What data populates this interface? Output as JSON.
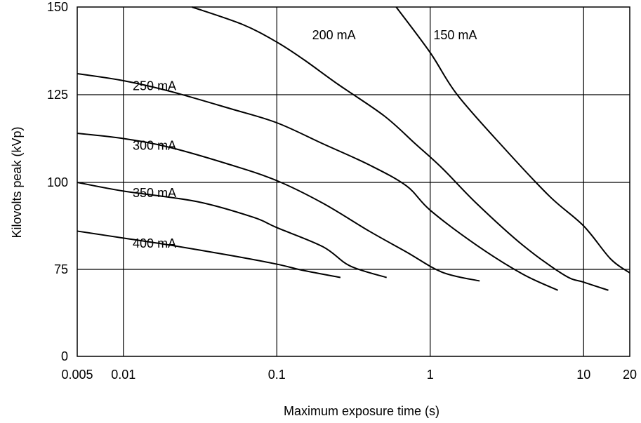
{
  "chart_data": {
    "type": "line",
    "xlabel": "Maximum exposure time (s)",
    "ylabel": "Kilovolts peak (kVp)",
    "x_scale": "log",
    "xlim": [
      0.005,
      20
    ],
    "ylim": [
      0,
      150
    ],
    "grid": true,
    "x_ticks": [
      {
        "value": 0.005,
        "label": "0.005"
      },
      {
        "value": 0.01,
        "label": "0.01"
      },
      {
        "value": 0.1,
        "label": "0.1"
      },
      {
        "value": 1,
        "label": "1"
      },
      {
        "value": 10,
        "label": "10"
      },
      {
        "value": 20,
        "label": "20"
      }
    ],
    "y_ticks": [
      {
        "value": 0,
        "label": "0"
      },
      {
        "value": 75,
        "label": "75"
      },
      {
        "value": 100,
        "label": "100"
      },
      {
        "value": 125,
        "label": "125"
      },
      {
        "value": 150,
        "label": "150"
      }
    ],
    "series": [
      {
        "name": "150 mA",
        "label_at": [
          1.05,
          142
        ],
        "points": [
          [
            0.6,
            150
          ],
          [
            1,
            137
          ],
          [
            1.5,
            125
          ],
          [
            3,
            110
          ],
          [
            6,
            96
          ],
          [
            10,
            87.5
          ],
          [
            15,
            78
          ],
          [
            20,
            72
          ]
        ]
      },
      {
        "name": "200 mA",
        "label_at": [
          0.17,
          142
        ],
        "points": [
          [
            0.028,
            150
          ],
          [
            0.06,
            145
          ],
          [
            0.1,
            140
          ],
          [
            0.15,
            135
          ],
          [
            0.25,
            128
          ],
          [
            0.5,
            119
          ],
          [
            0.8,
            111
          ],
          [
            1.2,
            104
          ],
          [
            2,
            94
          ],
          [
            4,
            82
          ],
          [
            7.5,
            70
          ],
          [
            10,
            64
          ],
          [
            14.5,
            57
          ]
        ]
      },
      {
        "name": "250 mA",
        "label_at": [
          0.0115,
          127.5
        ],
        "points": [
          [
            0.005,
            131
          ],
          [
            0.01,
            129
          ],
          [
            0.02,
            126
          ],
          [
            0.05,
            121
          ],
          [
            0.1,
            117
          ],
          [
            0.2,
            111
          ],
          [
            0.4,
            105
          ],
          [
            0.7,
            99
          ],
          [
            1,
            92
          ],
          [
            2,
            82
          ],
          [
            4,
            71
          ],
          [
            6.8,
            57
          ]
        ]
      },
      {
        "name": "300 mA",
        "label_at": [
          0.0115,
          110.5
        ],
        "points": [
          [
            0.005,
            114
          ],
          [
            0.01,
            112.5
          ],
          [
            0.02,
            110
          ],
          [
            0.05,
            105
          ],
          [
            0.1,
            100.5
          ],
          [
            0.2,
            94
          ],
          [
            0.4,
            86
          ],
          [
            0.7,
            80
          ],
          [
            1.2,
            72.5
          ],
          [
            2.1,
            65
          ]
        ]
      },
      {
        "name": "350 mA",
        "label_at": [
          0.0115,
          97
        ],
        "points": [
          [
            0.005,
            100
          ],
          [
            0.01,
            97.5
          ],
          [
            0.03,
            94.5
          ],
          [
            0.07,
            90
          ],
          [
            0.1,
            87
          ],
          [
            0.2,
            81.5
          ],
          [
            0.3,
            76
          ],
          [
            0.52,
            68
          ]
        ]
      },
      {
        "name": "400 mA",
        "label_at": [
          0.0115,
          82.5
        ],
        "points": [
          [
            0.005,
            86
          ],
          [
            0.01,
            84
          ],
          [
            0.02,
            82
          ],
          [
            0.05,
            79
          ],
          [
            0.1,
            76.5
          ],
          [
            0.15,
            74
          ],
          [
            0.26,
            68
          ]
        ]
      }
    ]
  }
}
